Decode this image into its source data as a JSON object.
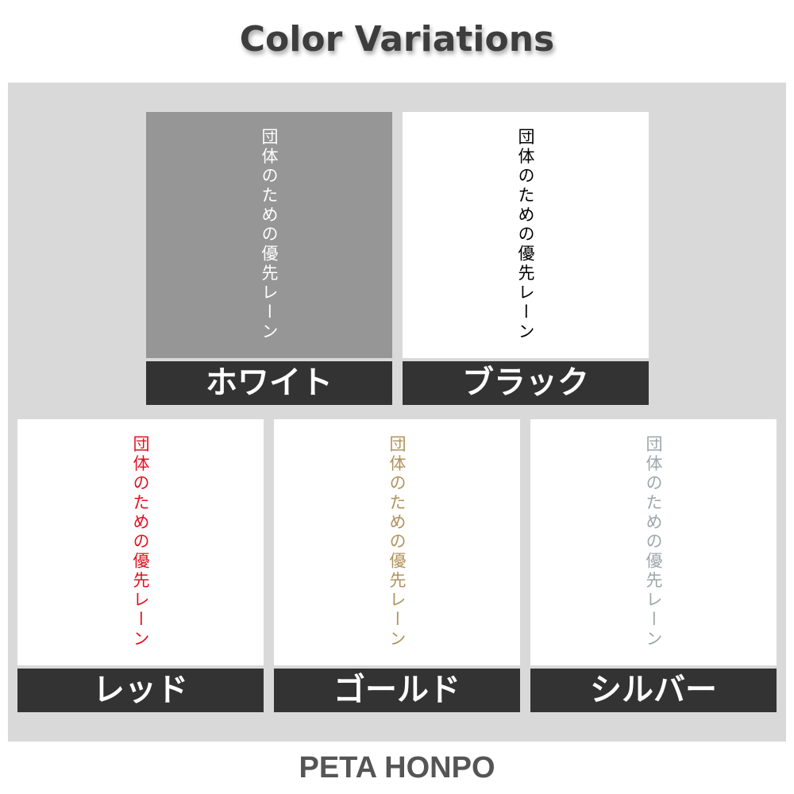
{
  "title": "Color Variations",
  "footer": "PETA HONPO",
  "variants": [
    {
      "label": "ホワイト",
      "text": "団体のための優先レーン",
      "text_color": "#ffffff",
      "bg_color": "#969696"
    },
    {
      "label": "ブラック",
      "text": "団体のための優先レーン",
      "text_color": "#000000",
      "bg_color": "#ffffff"
    },
    {
      "label": "レッド",
      "text": "団体のための優先レーン",
      "text_color": "#e0101e",
      "bg_color": "#ffffff"
    },
    {
      "label": "ゴールド",
      "text": "団体のための優先レーン",
      "text_color": "#b0925a",
      "bg_color": "#ffffff"
    },
    {
      "label": "シルバー",
      "text": "団体のための優先レーン",
      "text_color": "#9ea6a8",
      "bg_color": "#ffffff"
    }
  ]
}
